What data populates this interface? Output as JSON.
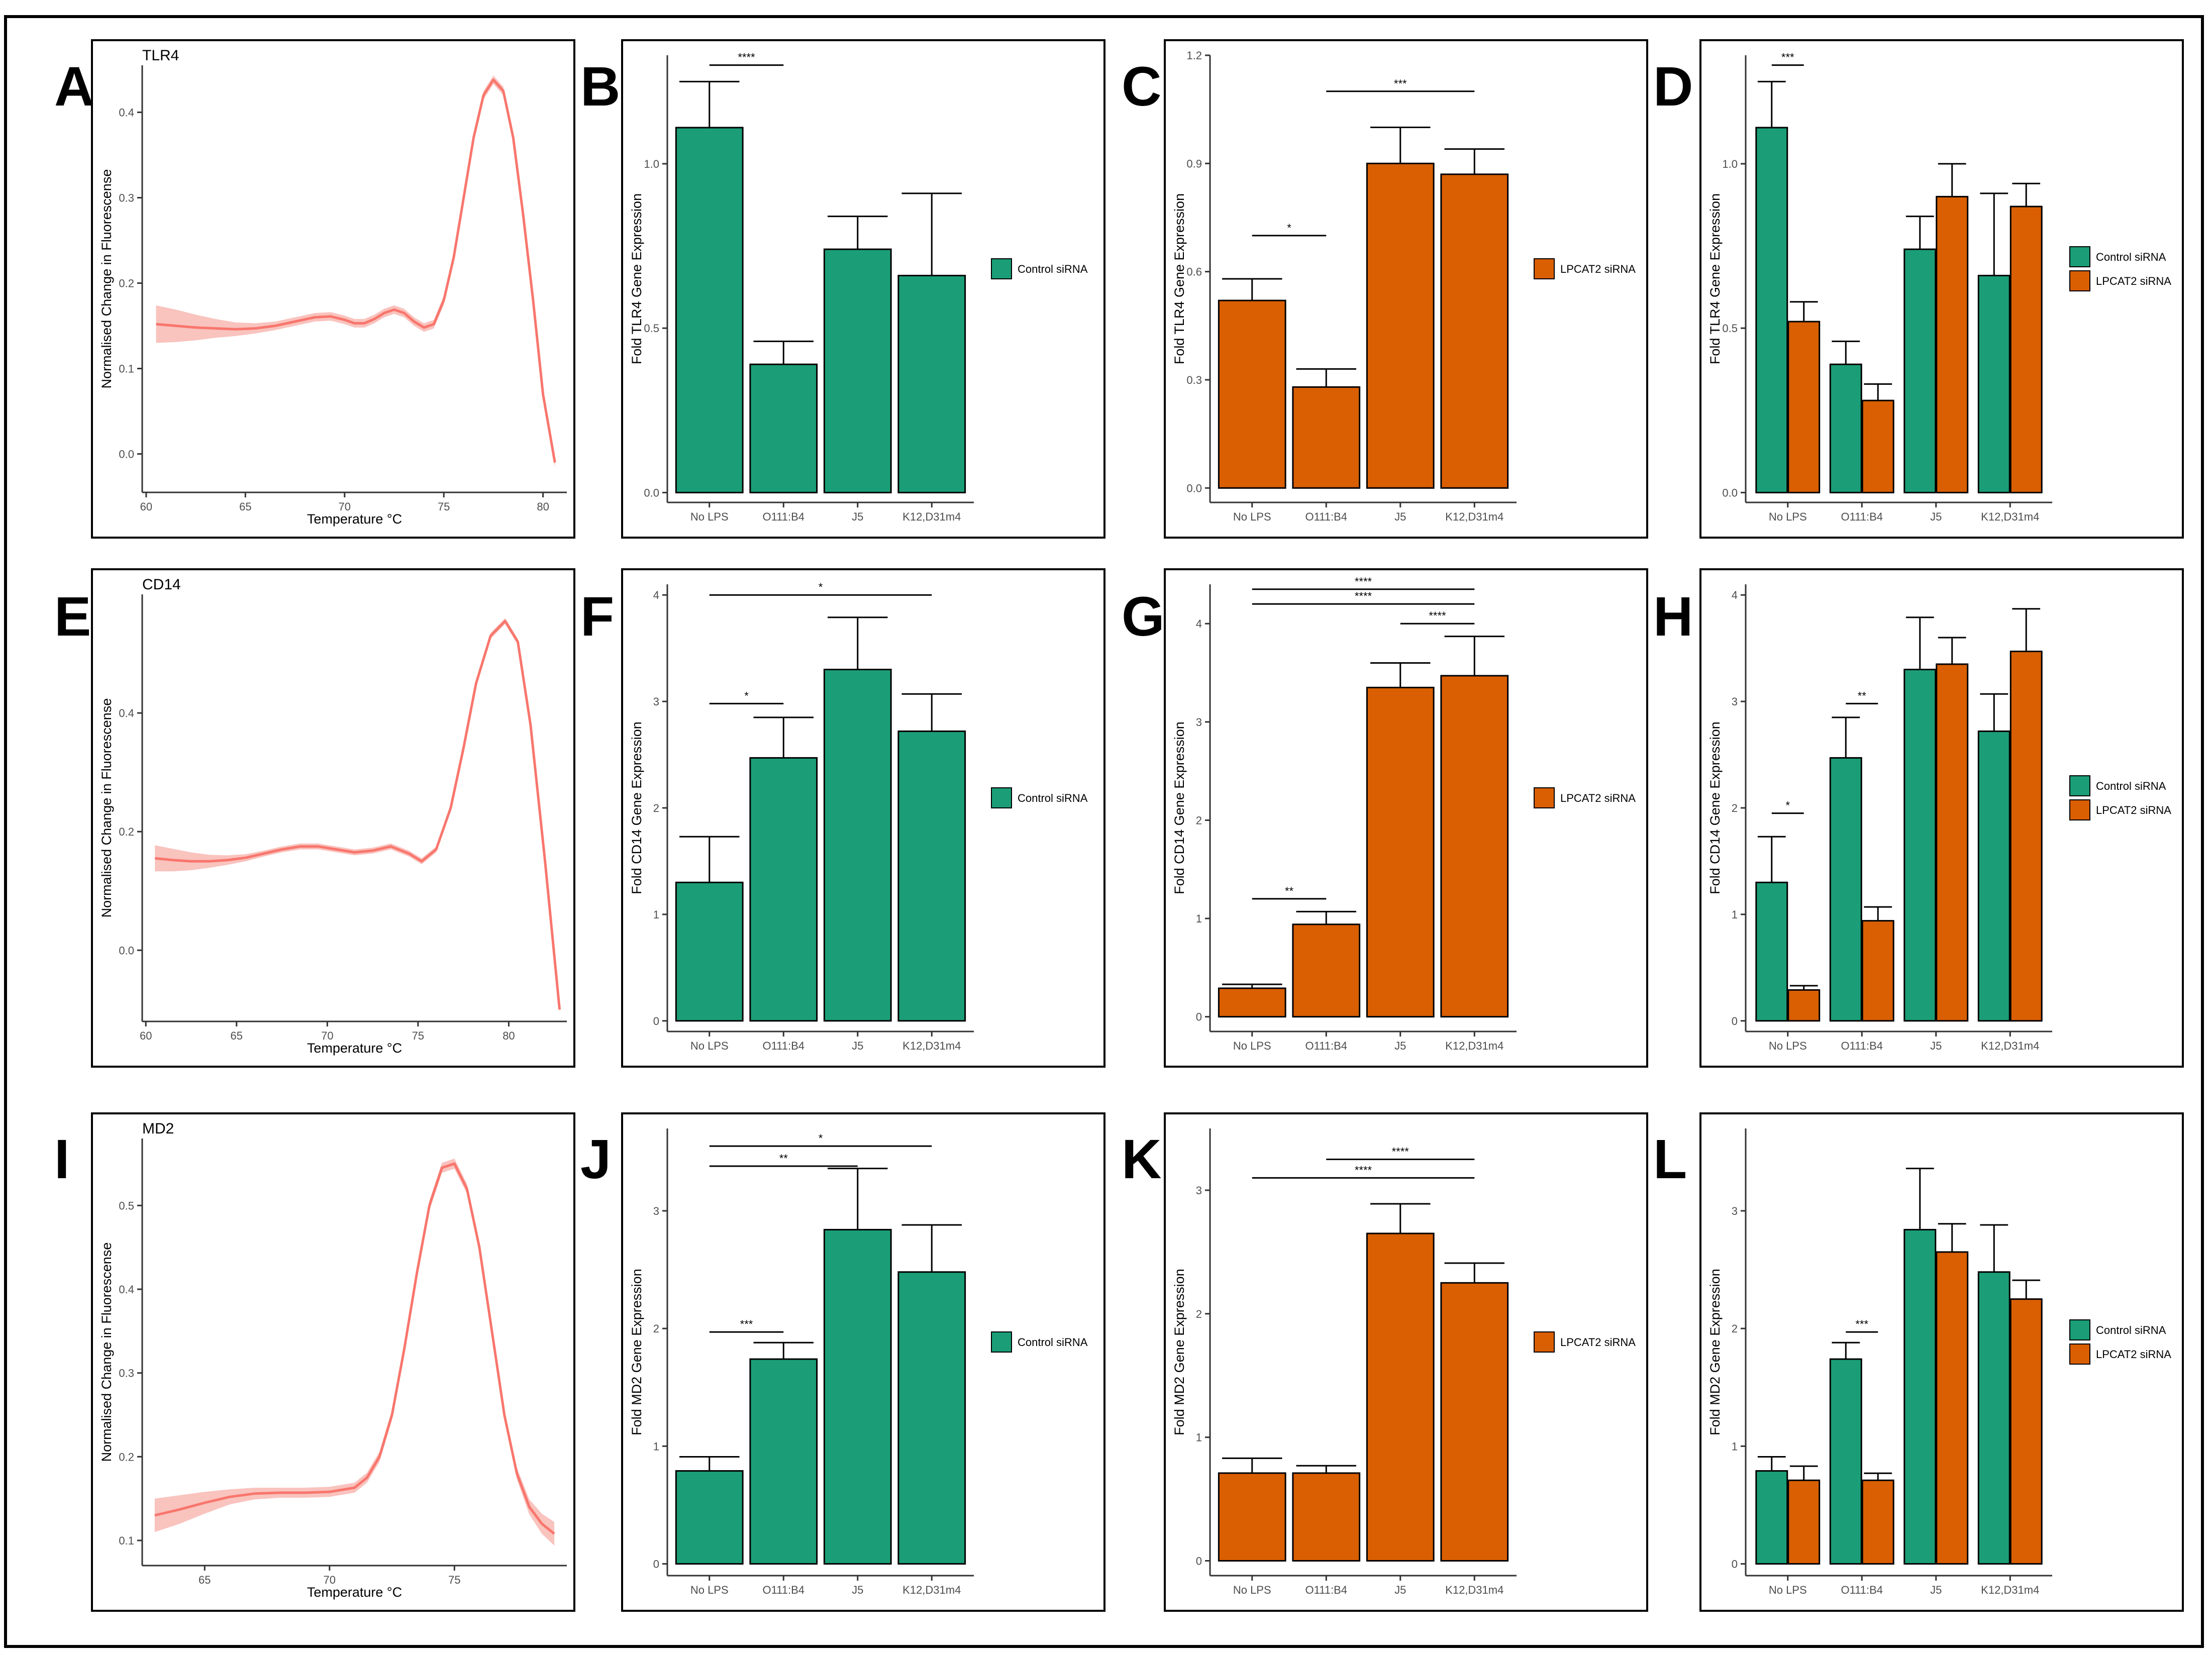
{
  "colors": {
    "control": "#1b9e77",
    "lpcat2": "#d95f02",
    "melt": "#f8766d",
    "melt_band": "#f8b4ae"
  },
  "chart_data": [
    {
      "panel": "A",
      "type": "line",
      "gene": "TLR4",
      "xlabel": "Temperature °C",
      "ylabel": "Normalised Change in Fluorescense",
      "xlim": [
        59.8,
        81.2
      ],
      "ylim": [
        -0.045,
        0.455
      ],
      "xticks": [
        60,
        65,
        70,
        75,
        80
      ],
      "yticks": [
        0.0,
        0.1,
        0.2,
        0.3,
        0.4
      ],
      "ytick_labels": [
        "0.0",
        "0.1",
        "0.2",
        "0.3",
        "0.4"
      ],
      "x": [
        60.5,
        61.5,
        62.5,
        63.5,
        64.5,
        65.5,
        66.5,
        67.5,
        68.5,
        69.3,
        70,
        70.5,
        71,
        71.5,
        72,
        72.5,
        73,
        73.5,
        74,
        74.5,
        75,
        75.5,
        76,
        76.5,
        77,
        77.5,
        78,
        78.5,
        79,
        79.5,
        80,
        80.6
      ],
      "y": [
        0.152,
        0.15,
        0.148,
        0.147,
        0.146,
        0.147,
        0.15,
        0.155,
        0.16,
        0.161,
        0.157,
        0.153,
        0.153,
        0.158,
        0.165,
        0.169,
        0.165,
        0.155,
        0.148,
        0.152,
        0.18,
        0.23,
        0.3,
        0.37,
        0.42,
        0.438,
        0.425,
        0.37,
        0.28,
        0.18,
        0.07,
        -0.01
      ],
      "band": [
        0.022,
        0.019,
        0.015,
        0.011,
        0.008,
        0.006,
        0.005,
        0.005,
        0.005,
        0.005,
        0.005,
        0.005,
        0.005,
        0.005,
        0.005,
        0.005,
        0.005,
        0.005,
        0.005,
        0.005,
        0.005,
        0.005,
        0.005,
        0.005,
        0.005,
        0.005,
        0.005,
        0.005,
        0.005,
        0.005,
        0.005,
        0.006
      ]
    },
    {
      "panel": "B",
      "type": "bar",
      "gene": "TLR4",
      "ylabel": "Fold TLR4 Gene Expression",
      "categories": [
        "No LPS",
        "O111:B4",
        "J5",
        "K12,D31m4"
      ],
      "series": [
        {
          "name": "Control siRNA",
          "color": "control",
          "values": [
            1.11,
            0.39,
            0.74,
            0.66
          ],
          "errors": [
            0.14,
            0.07,
            0.1,
            0.25
          ]
        }
      ],
      "ylim": [
        -0.03,
        1.33
      ],
      "yticks": [
        0.0,
        0.5,
        1.0
      ],
      "ytick_labels": [
        "0.0",
        "0.5",
        "1.0"
      ],
      "sig": [
        {
          "from": 0,
          "to": 1,
          "y": 1.3,
          "label": "****"
        }
      ],
      "legend": [
        "Control siRNA"
      ]
    },
    {
      "panel": "C",
      "type": "bar",
      "gene": "TLR4",
      "ylabel": "Fold TLR4 Gene Expression",
      "categories": [
        "No LPS",
        "O111:B4",
        "J5",
        "K12,D31m4"
      ],
      "series": [
        {
          "name": "LPCAT2 siRNA",
          "color": "lpcat2",
          "values": [
            0.52,
            0.28,
            0.9,
            0.87
          ],
          "errors": [
            0.06,
            0.05,
            0.1,
            0.07
          ]
        }
      ],
      "ylim": [
        -0.04,
        1.2
      ],
      "yticks": [
        0.0,
        0.3,
        0.6,
        0.9,
        1.2
      ],
      "ytick_labels": [
        "0.0",
        "0.3",
        "0.6",
        "0.9",
        "1.2"
      ],
      "sig": [
        {
          "from": 0,
          "to": 1,
          "y": 0.7,
          "label": "*"
        },
        {
          "from": 1,
          "to": 3,
          "y": 1.1,
          "label": "***"
        }
      ],
      "legend": [
        "LPCAT2 siRNA"
      ]
    },
    {
      "panel": "D",
      "type": "bar",
      "gene": "TLR4",
      "ylabel": "Fold TLR4 Gene Expression",
      "categories": [
        "No LPS",
        "O111:B4",
        "J5",
        "K12,D31m4"
      ],
      "series": [
        {
          "name": "Control siRNA",
          "color": "control",
          "values": [
            1.11,
            0.39,
            0.74,
            0.66
          ],
          "errors": [
            0.14,
            0.07,
            0.1,
            0.25
          ]
        },
        {
          "name": "LPCAT2 siRNA",
          "color": "lpcat2",
          "values": [
            0.52,
            0.28,
            0.9,
            0.87
          ],
          "errors": [
            0.06,
            0.05,
            0.1,
            0.07
          ]
        }
      ],
      "ylim": [
        -0.03,
        1.33
      ],
      "yticks": [
        0.0,
        0.5,
        1.0
      ],
      "ytick_labels": [
        "0.0",
        "0.5",
        "1.0"
      ],
      "sig": [
        {
          "group": 0,
          "y": 1.3,
          "label": "***"
        }
      ],
      "legend": [
        "Control siRNA",
        "LPCAT2 siRNA"
      ]
    },
    {
      "panel": "E",
      "type": "line",
      "gene": "CD14",
      "xlabel": "Temperature °C",
      "ylabel": "Normalised Change in Fluorescense",
      "xlim": [
        59.8,
        83.2
      ],
      "ylim": [
        -0.12,
        0.6
      ],
      "xticks": [
        60,
        65,
        70,
        75,
        80
      ],
      "yticks": [
        0.0,
        0.2,
        0.4
      ],
      "ytick_labels": [
        "0.0",
        "0.2",
        "0.4"
      ],
      "x": [
        60.5,
        61.5,
        62.5,
        63.5,
        64.5,
        65.5,
        66.5,
        67.5,
        68.5,
        69.5,
        70.5,
        71.5,
        72.5,
        73.5,
        74.5,
        75.2,
        76,
        76.8,
        77.5,
        78.2,
        79,
        79.8,
        80.5,
        81.2,
        82,
        82.8
      ],
      "y": [
        0.155,
        0.152,
        0.15,
        0.15,
        0.152,
        0.156,
        0.163,
        0.17,
        0.175,
        0.175,
        0.17,
        0.165,
        0.168,
        0.175,
        0.163,
        0.15,
        0.17,
        0.24,
        0.34,
        0.45,
        0.53,
        0.555,
        0.52,
        0.38,
        0.15,
        -0.1
      ],
      "band": [
        0.022,
        0.019,
        0.015,
        0.011,
        0.008,
        0.006,
        0.005,
        0.005,
        0.005,
        0.005,
        0.005,
        0.005,
        0.005,
        0.005,
        0.005,
        0.005,
        0.005,
        0.005,
        0.005,
        0.005,
        0.005,
        0.005,
        0.005,
        0.005,
        0.005,
        0.006
      ]
    },
    {
      "panel": "F",
      "type": "bar",
      "gene": "CD14",
      "ylabel": "Fold CD14 Gene Expression",
      "categories": [
        "No LPS",
        "O111:B4",
        "J5",
        "K12,D31m4"
      ],
      "series": [
        {
          "name": "Control siRNA",
          "color": "control",
          "values": [
            1.3,
            2.47,
            3.3,
            2.72
          ],
          "errors": [
            0.43,
            0.38,
            0.49,
            0.35
          ]
        }
      ],
      "ylim": [
        -0.1,
        4.1
      ],
      "yticks": [
        0,
        1,
        2,
        3,
        4
      ],
      "ytick_labels": [
        "0",
        "1",
        "2",
        "3",
        "4"
      ],
      "sig": [
        {
          "from": 0,
          "to": 1,
          "y": 2.98,
          "label": "*"
        },
        {
          "from": 0,
          "to": 3,
          "y": 4.0,
          "label": "*"
        }
      ],
      "legend": [
        "Control siRNA"
      ]
    },
    {
      "panel": "G",
      "type": "bar",
      "gene": "CD14",
      "ylabel": "Fold CD14 Gene Expression",
      "categories": [
        "No LPS",
        "O111:B4",
        "J5",
        "K12,D31m4"
      ],
      "series": [
        {
          "name": "LPCAT2 siRNA",
          "color": "lpcat2",
          "values": [
            0.29,
            0.94,
            3.35,
            3.47
          ],
          "errors": [
            0.04,
            0.13,
            0.25,
            0.4
          ]
        }
      ],
      "ylim": [
        -0.15,
        4.4
      ],
      "yticks": [
        0,
        1,
        2,
        3,
        4
      ],
      "ytick_labels": [
        "0",
        "1",
        "2",
        "3",
        "4"
      ],
      "sig": [
        {
          "from": 0,
          "to": 1,
          "y": 1.2,
          "label": "**"
        },
        {
          "from": 2,
          "to": 3,
          "y": 4.0,
          "label": "****"
        },
        {
          "from": 0,
          "to": 3,
          "y": 4.2,
          "label": "****"
        },
        {
          "from": 0,
          "to": 3,
          "y": 4.35,
          "label": "****"
        }
      ],
      "legend": [
        "LPCAT2 siRNA"
      ]
    },
    {
      "panel": "H",
      "type": "bar",
      "gene": "CD14",
      "ylabel": "Fold CD14 Gene Expression",
      "categories": [
        "No LPS",
        "O111:B4",
        "J5",
        "K12,D31m4"
      ],
      "series": [
        {
          "name": "Control siRNA",
          "color": "control",
          "values": [
            1.3,
            2.47,
            3.3,
            2.72
          ],
          "errors": [
            0.43,
            0.38,
            0.49,
            0.35
          ]
        },
        {
          "name": "LPCAT2 siRNA",
          "color": "lpcat2",
          "values": [
            0.29,
            0.94,
            3.35,
            3.47
          ],
          "errors": [
            0.04,
            0.13,
            0.25,
            0.4
          ]
        }
      ],
      "ylim": [
        -0.1,
        4.1
      ],
      "yticks": [
        0,
        1,
        2,
        3,
        4
      ],
      "ytick_labels": [
        "0",
        "1",
        "2",
        "3",
        "4"
      ],
      "sig": [
        {
          "group": 0,
          "y": 1.95,
          "label": "*"
        },
        {
          "group": 1,
          "y": 2.98,
          "label": "**"
        }
      ],
      "legend": [
        "Control siRNA",
        "LPCAT2 siRNA"
      ]
    },
    {
      "panel": "I",
      "type": "line",
      "gene": "MD2",
      "xlabel": "Temperature °C",
      "ylabel": "Normalised Change in Fluorescense",
      "xlim": [
        62.5,
        79.5
      ],
      "ylim": [
        0.07,
        0.58
      ],
      "xticks": [
        65,
        70,
        75
      ],
      "yticks": [
        0.1,
        0.2,
        0.3,
        0.4,
        0.5
      ],
      "ytick_labels": [
        "0.1",
        "0.2",
        "0.3",
        "0.4",
        "0.5"
      ],
      "x": [
        63,
        64,
        65,
        66,
        67,
        68,
        69,
        70,
        71,
        71.5,
        72,
        72.5,
        73,
        73.5,
        74,
        74.5,
        75,
        75.5,
        76,
        76.5,
        77,
        77.5,
        78,
        78.5,
        79
      ],
      "y": [
        0.13,
        0.137,
        0.145,
        0.152,
        0.156,
        0.157,
        0.157,
        0.158,
        0.163,
        0.175,
        0.2,
        0.25,
        0.33,
        0.42,
        0.5,
        0.545,
        0.55,
        0.52,
        0.45,
        0.35,
        0.25,
        0.18,
        0.14,
        0.12,
        0.108
      ],
      "band": [
        0.02,
        0.017,
        0.013,
        0.009,
        0.007,
        0.006,
        0.006,
        0.006,
        0.006,
        0.006,
        0.006,
        0.006,
        0.006,
        0.006,
        0.006,
        0.006,
        0.006,
        0.006,
        0.006,
        0.006,
        0.006,
        0.007,
        0.009,
        0.012,
        0.014
      ]
    },
    {
      "panel": "J",
      "type": "bar",
      "gene": "MD2",
      "ylabel": "Fold MD2 Gene Expression",
      "categories": [
        "No LPS",
        "O111:B4",
        "J5",
        "K12,D31m4"
      ],
      "series": [
        {
          "name": "Control siRNA",
          "color": "control",
          "values": [
            0.79,
            1.74,
            2.84,
            2.48
          ],
          "errors": [
            0.12,
            0.14,
            0.52,
            0.4
          ]
        }
      ],
      "ylim": [
        -0.1,
        3.7
      ],
      "yticks": [
        0,
        1,
        2,
        3
      ],
      "ytick_labels": [
        "0",
        "1",
        "2",
        "3"
      ],
      "sig": [
        {
          "from": 0,
          "to": 1,
          "y": 1.97,
          "label": "***"
        },
        {
          "from": 0,
          "to": 2,
          "y": 3.38,
          "label": "**"
        },
        {
          "from": 0,
          "to": 3,
          "y": 3.55,
          "label": "*"
        }
      ],
      "legend": [
        "Control siRNA"
      ]
    },
    {
      "panel": "K",
      "type": "bar",
      "gene": "MD2",
      "ylabel": "Fold MD2 Gene Expression",
      "categories": [
        "No LPS",
        "O111:B4",
        "J5",
        "K12,D31m4"
      ],
      "series": [
        {
          "name": "LPCAT2 siRNA",
          "color": "lpcat2",
          "values": [
            0.71,
            0.71,
            2.65,
            2.25
          ],
          "errors": [
            0.12,
            0.06,
            0.24,
            0.16
          ]
        }
      ],
      "ylim": [
        -0.12,
        3.5
      ],
      "yticks": [
        0,
        1,
        2,
        3
      ],
      "ytick_labels": [
        "0",
        "1",
        "2",
        "3"
      ],
      "sig": [
        {
          "from": 0,
          "to": 3,
          "y": 3.1,
          "label": "****"
        },
        {
          "from": 1,
          "to": 3,
          "y": 3.25,
          "label": "****"
        }
      ],
      "legend": [
        "LPCAT2 siRNA"
      ]
    },
    {
      "panel": "L",
      "type": "bar",
      "gene": "MD2",
      "ylabel": "Fold MD2 Gene Expression",
      "categories": [
        "No LPS",
        "O111:B4",
        "J5",
        "K12,D31m4"
      ],
      "series": [
        {
          "name": "Control siRNA",
          "color": "control",
          "values": [
            0.79,
            1.74,
            2.84,
            2.48
          ],
          "errors": [
            0.12,
            0.14,
            0.52,
            0.4
          ]
        },
        {
          "name": "LPCAT2 siRNA",
          "color": "lpcat2",
          "values": [
            0.71,
            0.71,
            2.65,
            2.25
          ],
          "errors": [
            0.12,
            0.06,
            0.24,
            0.16
          ]
        }
      ],
      "ylim": [
        -0.1,
        3.7
      ],
      "yticks": [
        0,
        1,
        2,
        3
      ],
      "ytick_labels": [
        "0",
        "1",
        "2",
        "3"
      ],
      "sig": [
        {
          "group": 1,
          "y": 1.97,
          "label": "***"
        }
      ],
      "legend": [
        "Control siRNA",
        "LPCAT2 siRNA"
      ]
    }
  ]
}
